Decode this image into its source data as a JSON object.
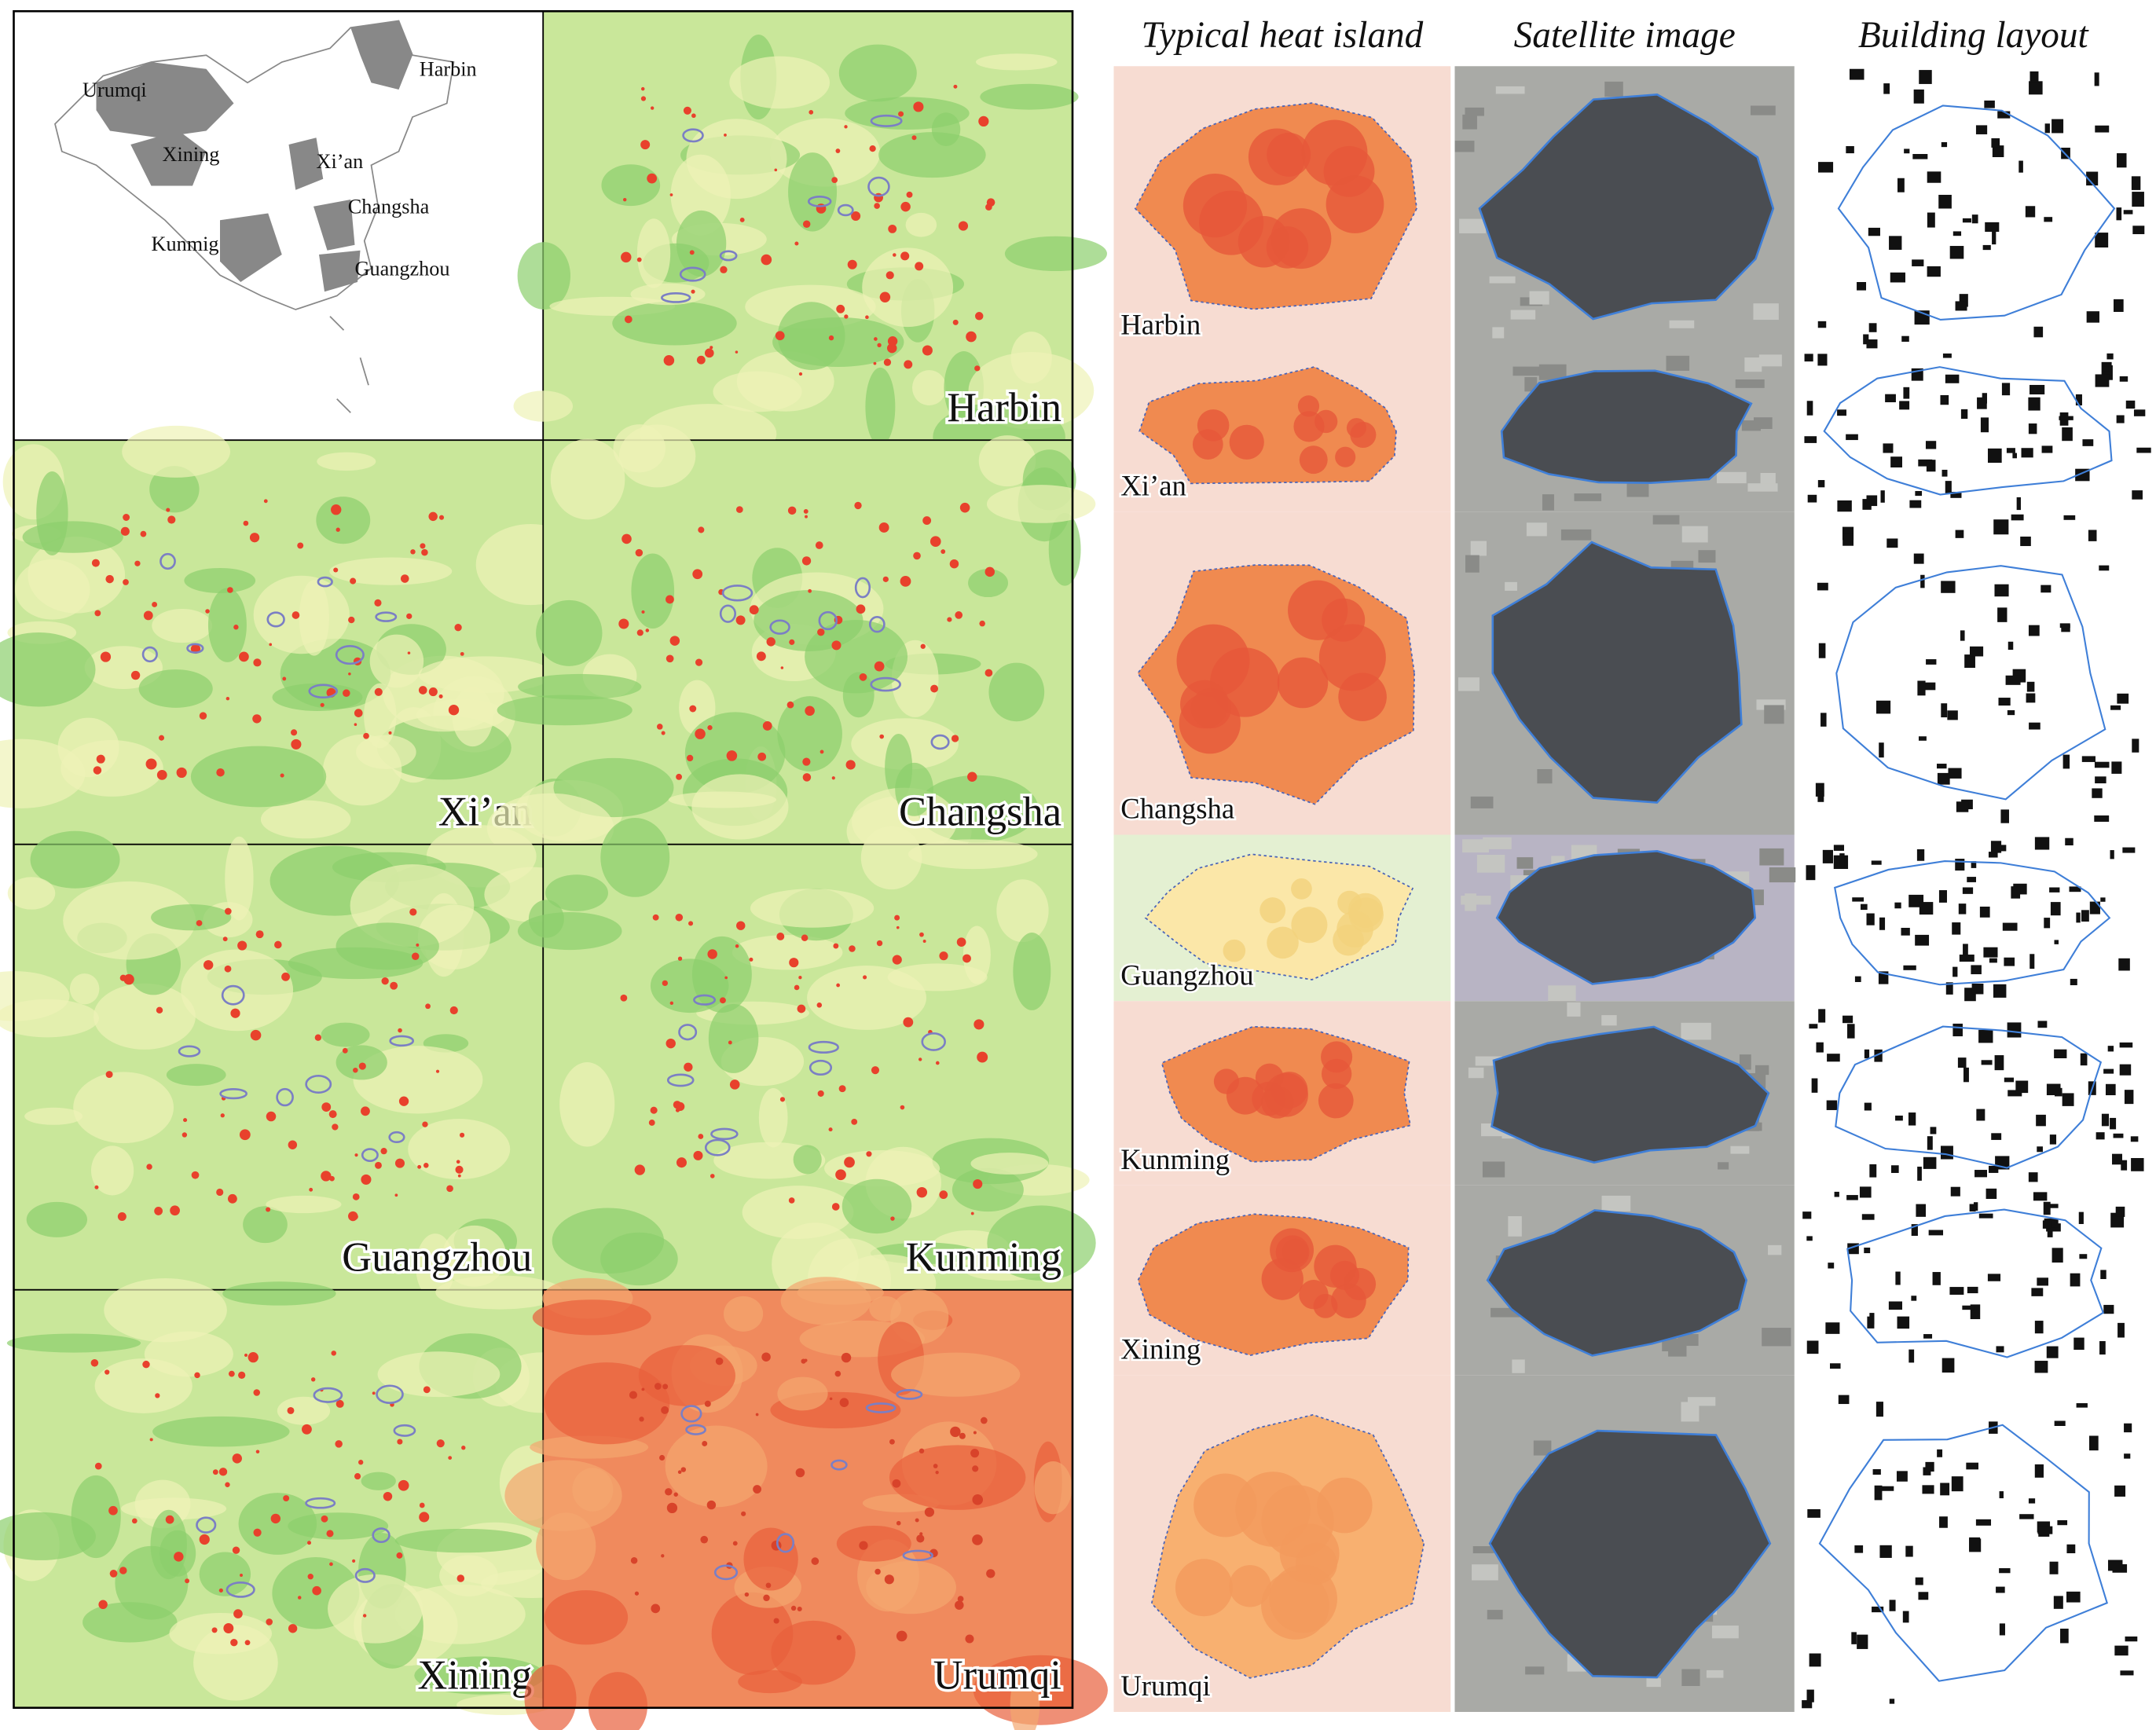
{
  "inset_map": {
    "labels": [
      "Urumqi",
      "Harbin",
      "Xining",
      "Xi’an",
      "Changsha",
      "Kunmig",
      "Guangzhou"
    ]
  },
  "city_panels": [
    "Harbin",
    "Xi’an",
    "Changsha",
    "Guangzhou",
    "Kunming",
    "Xining",
    "Urumqi"
  ],
  "columns": [
    "Typical heat island",
    "Satellite image",
    "Building layout"
  ],
  "rows": [
    "Harbin",
    "Xi’an",
    "Changsha",
    "Guangzhou",
    "Kunming",
    "Xining",
    "Urumqi"
  ]
}
